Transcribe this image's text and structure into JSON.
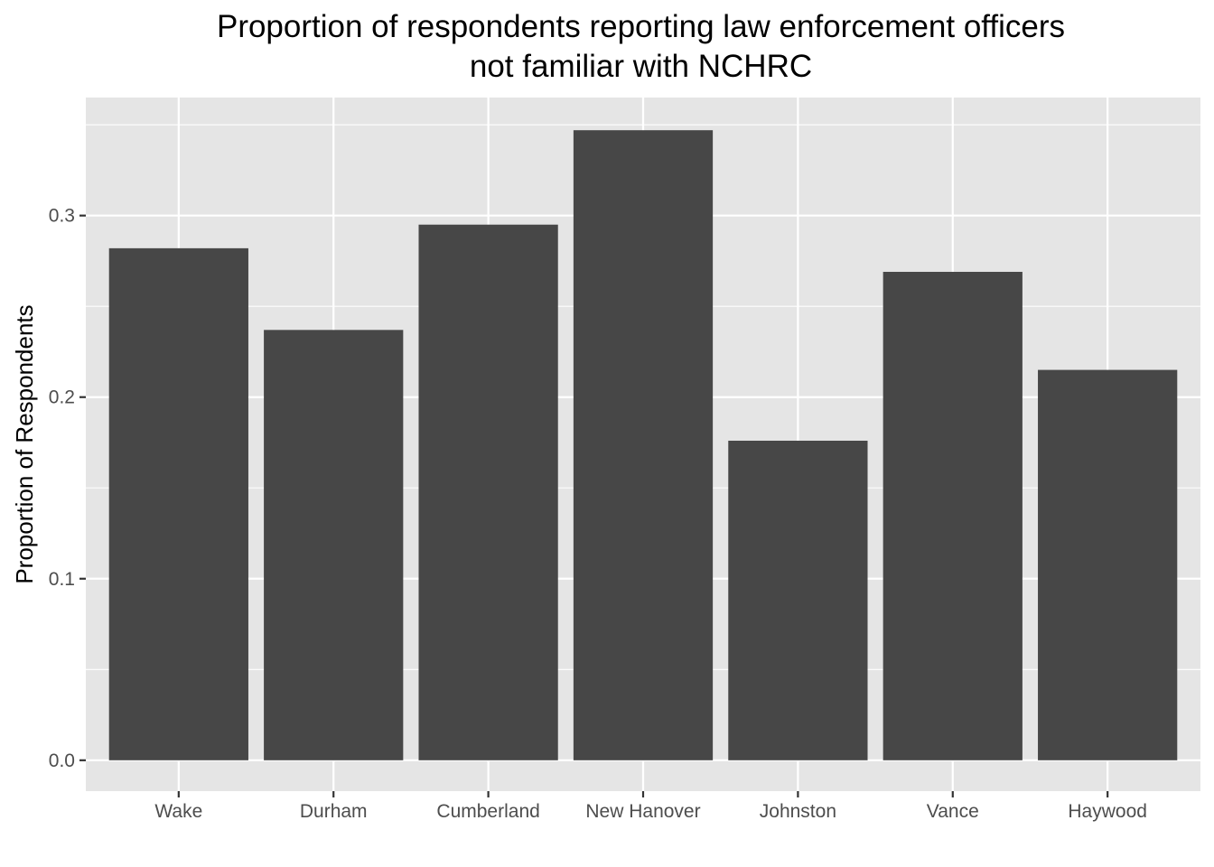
{
  "chart_data": {
    "type": "bar",
    "title_lines": [
      "Proportion of respondents reporting law enforcement officers",
      "not familiar with NCHRC"
    ],
    "xlabel": "",
    "ylabel": "Proportion of Respondents",
    "categories": [
      "Wake",
      "Durham",
      "Cumberland",
      "New Hanover",
      "Johnston",
      "Vance",
      "Haywood"
    ],
    "values": [
      0.282,
      0.237,
      0.295,
      0.347,
      0.176,
      0.269,
      0.215
    ],
    "ylim": [
      -0.017,
      0.365
    ],
    "yticks": [
      0.0,
      0.1,
      0.2,
      0.3
    ],
    "ytick_labels": [
      "0.0",
      "0.1",
      "0.2",
      "0.3"
    ],
    "grid": true,
    "colors": {
      "panel_background": "#e5e5e5",
      "grid_line": "#ffffff",
      "bar_fill": "#474747",
      "tick_text": "#4d4d4d",
      "tick_mark": "#333333"
    }
  }
}
